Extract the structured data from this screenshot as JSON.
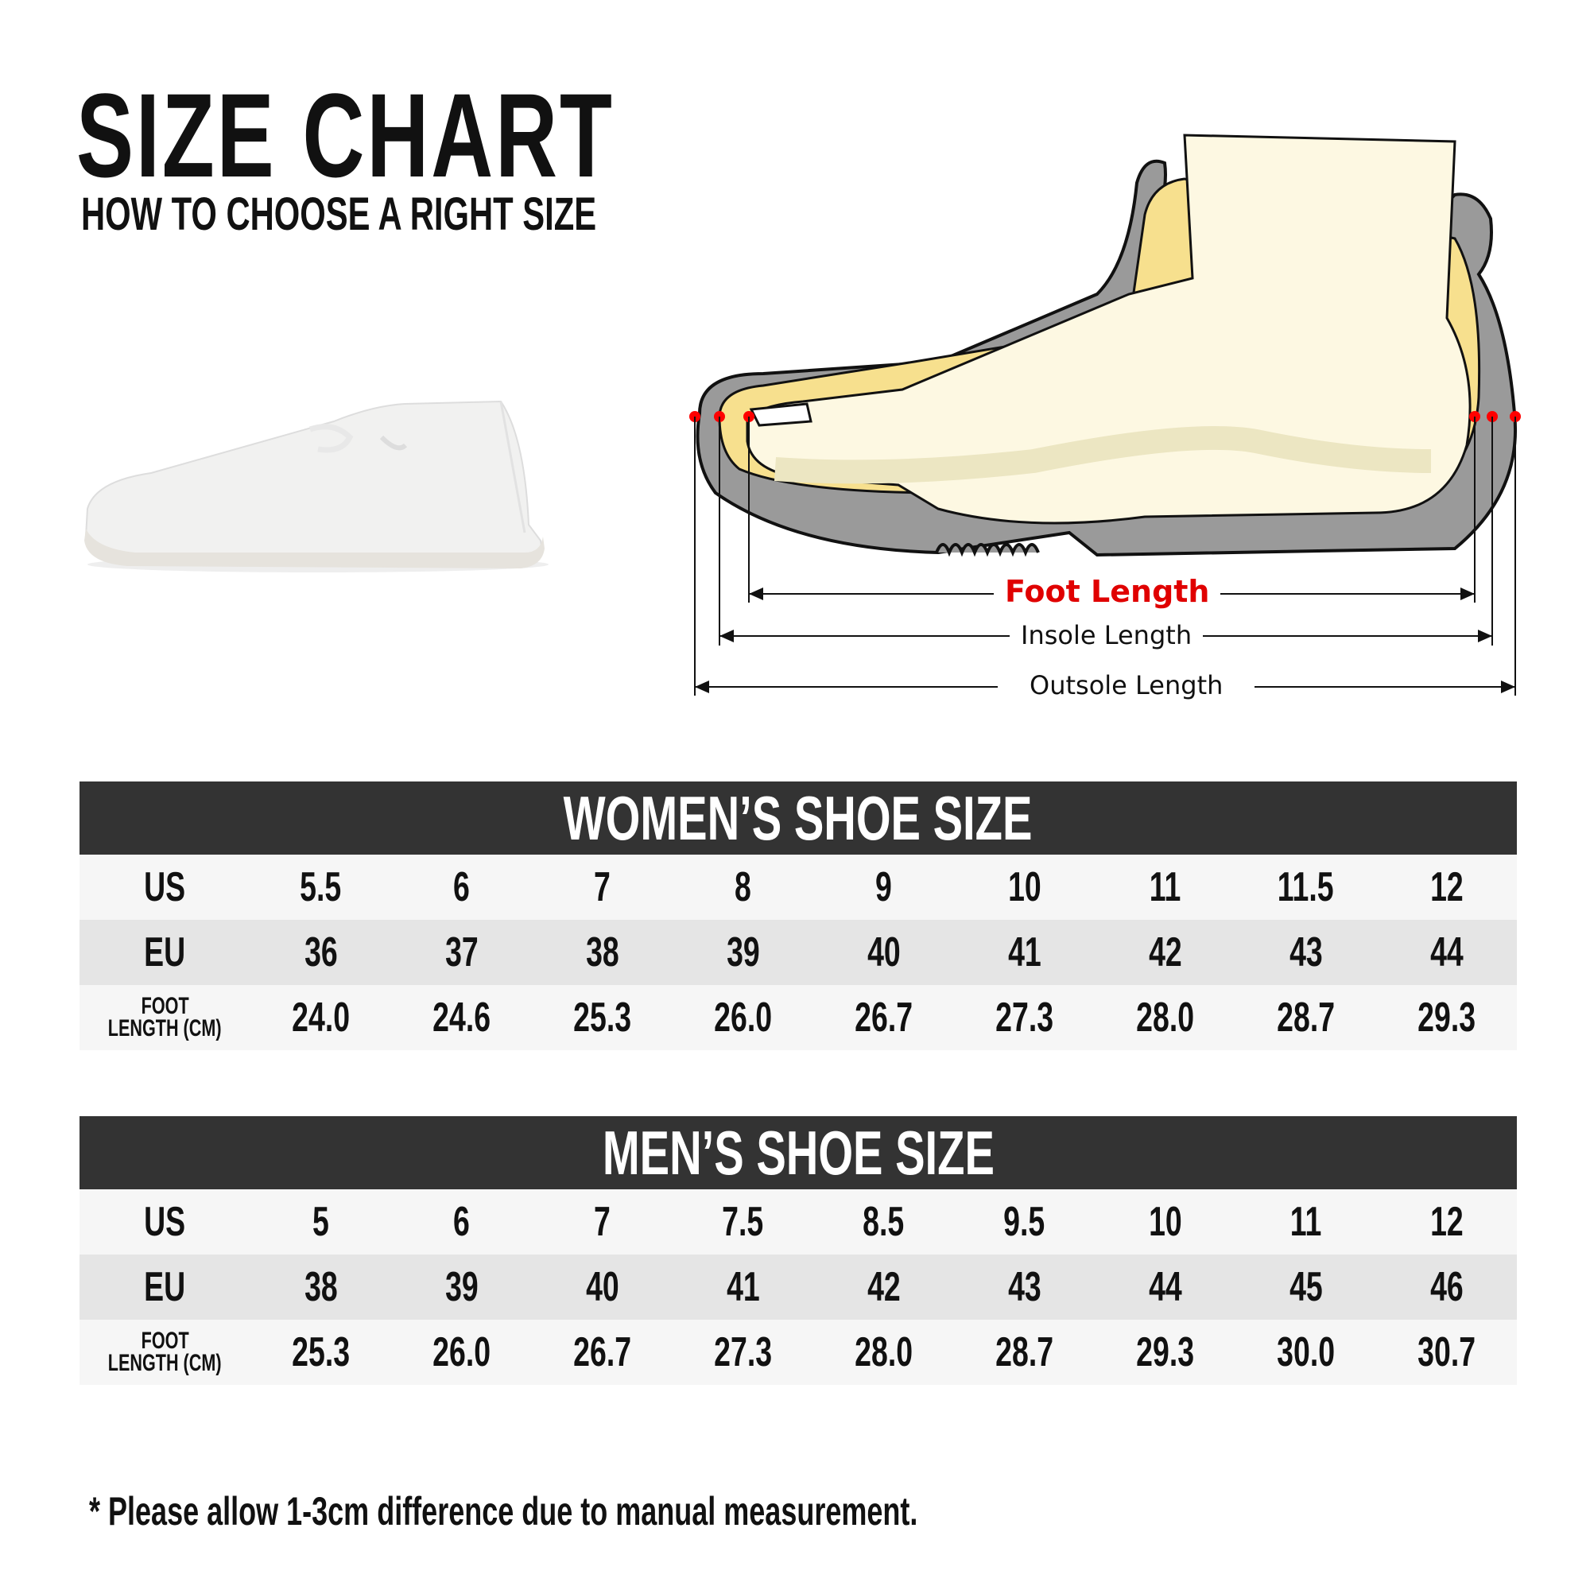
{
  "header": {
    "title": "SIZE CHART",
    "subtitle": "HOW TO CHOOSE A RIGHT SIZE"
  },
  "diagram": {
    "foot_length": "Foot Length",
    "insole_length": "Insole Length",
    "outsole_length": "Outsole Length",
    "colors": {
      "foot_length": "#e00000",
      "sole": "#9a9a9a",
      "insole": "#f7e08e",
      "foot": "#fdf8e2",
      "marker": "#ff0000"
    }
  },
  "women": {
    "title": "WOMEN’S SHOE SIZE",
    "rows": [
      {
        "label": "US",
        "values": [
          "5.5",
          "6",
          "7",
          "8",
          "9",
          "10",
          "11",
          "11.5",
          "12"
        ]
      },
      {
        "label": "EU",
        "values": [
          "36",
          "37",
          "38",
          "39",
          "40",
          "41",
          "42",
          "43",
          "44"
        ]
      },
      {
        "label": "FOOT LENGTH (CM)",
        "label_line1": "FOOT",
        "label_line2": "LENGTH (CM)",
        "values": [
          "24.0",
          "24.6",
          "25.3",
          "26.0",
          "26.7",
          "27.3",
          "28.0",
          "28.7",
          "29.3"
        ]
      }
    ]
  },
  "men": {
    "title": "MEN’S SHOE SIZE",
    "rows": [
      {
        "label": "US",
        "values": [
          "5",
          "6",
          "7",
          "7.5",
          "8.5",
          "9.5",
          "10",
          "11",
          "12"
        ]
      },
      {
        "label": "EU",
        "values": [
          "38",
          "39",
          "40",
          "41",
          "42",
          "43",
          "44",
          "45",
          "46"
        ]
      },
      {
        "label": "FOOT LENGTH (CM)",
        "label_line1": "FOOT",
        "label_line2": "LENGTH (CM)",
        "values": [
          "25.3",
          "26.0",
          "26.7",
          "27.3",
          "28.0",
          "28.7",
          "29.3",
          "30.0",
          "30.7"
        ]
      }
    ]
  },
  "footnote": "* Please allow 1-3cm difference due to manual measurement."
}
